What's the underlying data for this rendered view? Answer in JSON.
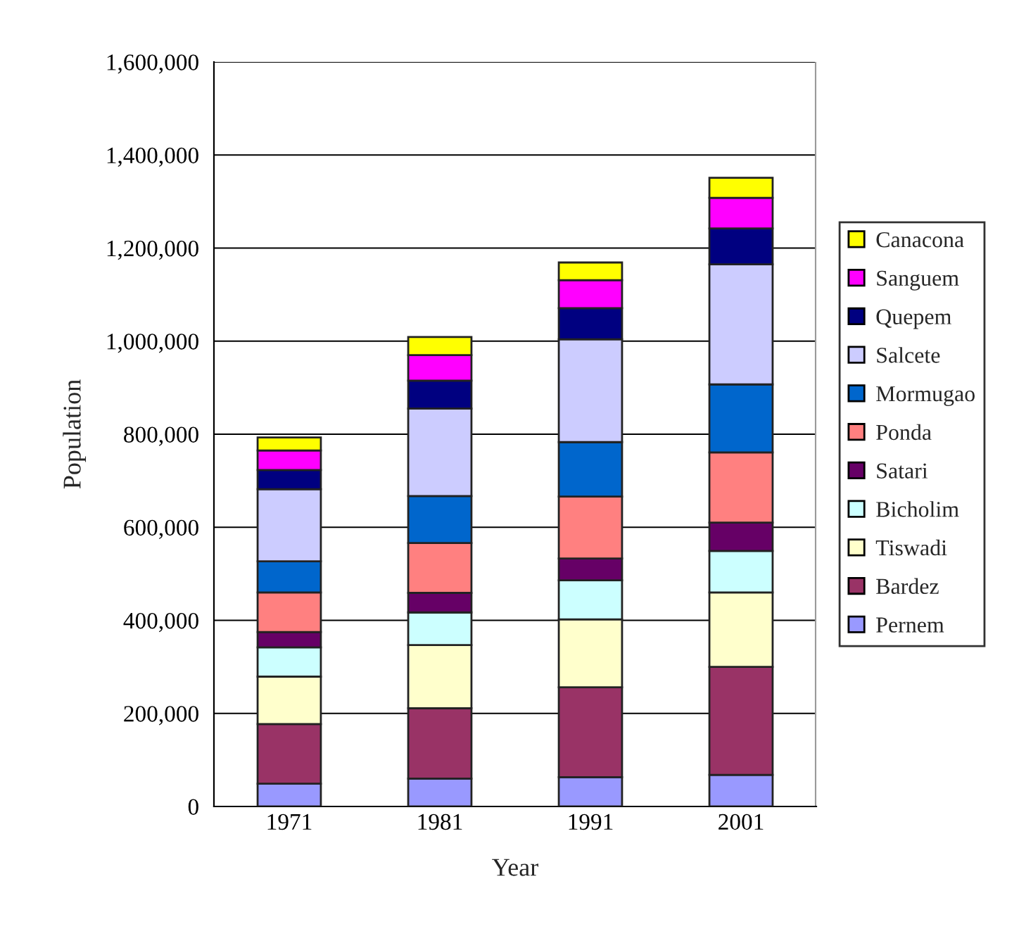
{
  "chart_data": {
    "type": "bar",
    "stacked": true,
    "xlabel": "Year",
    "ylabel": "Population",
    "categories": [
      "1971",
      "1981",
      "1991",
      "2001"
    ],
    "series": [
      {
        "name": "Pernem",
        "color": "#9999ff",
        "values": [
          49000,
          60000,
          63000,
          68000
        ]
      },
      {
        "name": "Bardez",
        "color": "#993366",
        "values": [
          128000,
          151000,
          193000,
          232000
        ]
      },
      {
        "name": "Tiswadi",
        "color": "#ffffcc",
        "values": [
          102000,
          136000,
          146000,
          160000
        ]
      },
      {
        "name": "Bicholim",
        "color": "#ccffff",
        "values": [
          63000,
          70000,
          84000,
          89000
        ]
      },
      {
        "name": "Satari",
        "color": "#660066",
        "values": [
          33000,
          42000,
          47000,
          61000
        ]
      },
      {
        "name": "Ponda",
        "color": "#ff8080",
        "values": [
          85000,
          107000,
          133000,
          151000
        ]
      },
      {
        "name": "Mormugao",
        "color": "#0066cc",
        "values": [
          67000,
          101000,
          117000,
          146000
        ]
      },
      {
        "name": "Salcete",
        "color": "#ccccff",
        "values": [
          155000,
          188000,
          221000,
          258000
        ]
      },
      {
        "name": "Quepem",
        "color": "#000080",
        "values": [
          41000,
          60000,
          67000,
          77000
        ]
      },
      {
        "name": "Sanguem",
        "color": "#ff00ff",
        "values": [
          42000,
          55000,
          60000,
          66000
        ]
      },
      {
        "name": "Canacona",
        "color": "#ffff00",
        "values": [
          28000,
          39000,
          38000,
          43000
        ]
      }
    ],
    "ylim": [
      0,
      1600000
    ],
    "yticks": [
      0,
      {
        "value": 200000,
        "label": "200,000"
      },
      {
        "value": 400000,
        "label": "400,000"
      },
      {
        "value": 600000,
        "label": "600,000"
      },
      {
        "value": 800000,
        "label": "800,000"
      },
      {
        "value": 1000000,
        "label": "1,000,000"
      },
      {
        "value": 1200000,
        "label": "1,200,000"
      },
      {
        "value": 1400000,
        "label": "1,400,000"
      },
      {
        "value": 1600000,
        "label": "1,600,000"
      }
    ],
    "grid": "y",
    "legend": "right"
  }
}
